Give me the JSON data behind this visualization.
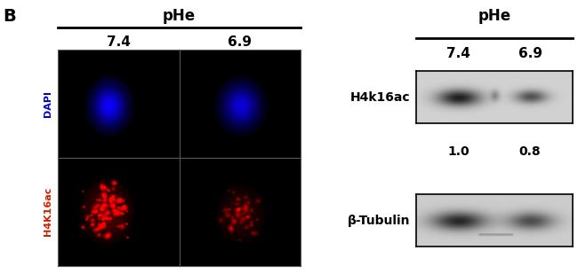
{
  "background_color": "#ffffff",
  "panel_label": "B",
  "left_panel": {
    "phe_label": "pHe",
    "col_labels": [
      "7.4",
      "6.9"
    ],
    "row_labels": [
      "DAPI",
      "H4K16ac"
    ],
    "row_label_colors": [
      "#0000cc",
      "#cc2200"
    ],
    "dapi_bg": "#000010",
    "dapi_blob_color": "#3333dd",
    "h4k_bg": "#0a0000",
    "h4k_blob_color": "#bb2200"
  },
  "right_panel": {
    "phe_label": "pHe",
    "col_labels": [
      "7.4",
      "6.9"
    ],
    "h4k_label": "H4k16ac",
    "tubulin_label": "β-Tubulin",
    "values": [
      "1.0",
      "0.8"
    ]
  }
}
